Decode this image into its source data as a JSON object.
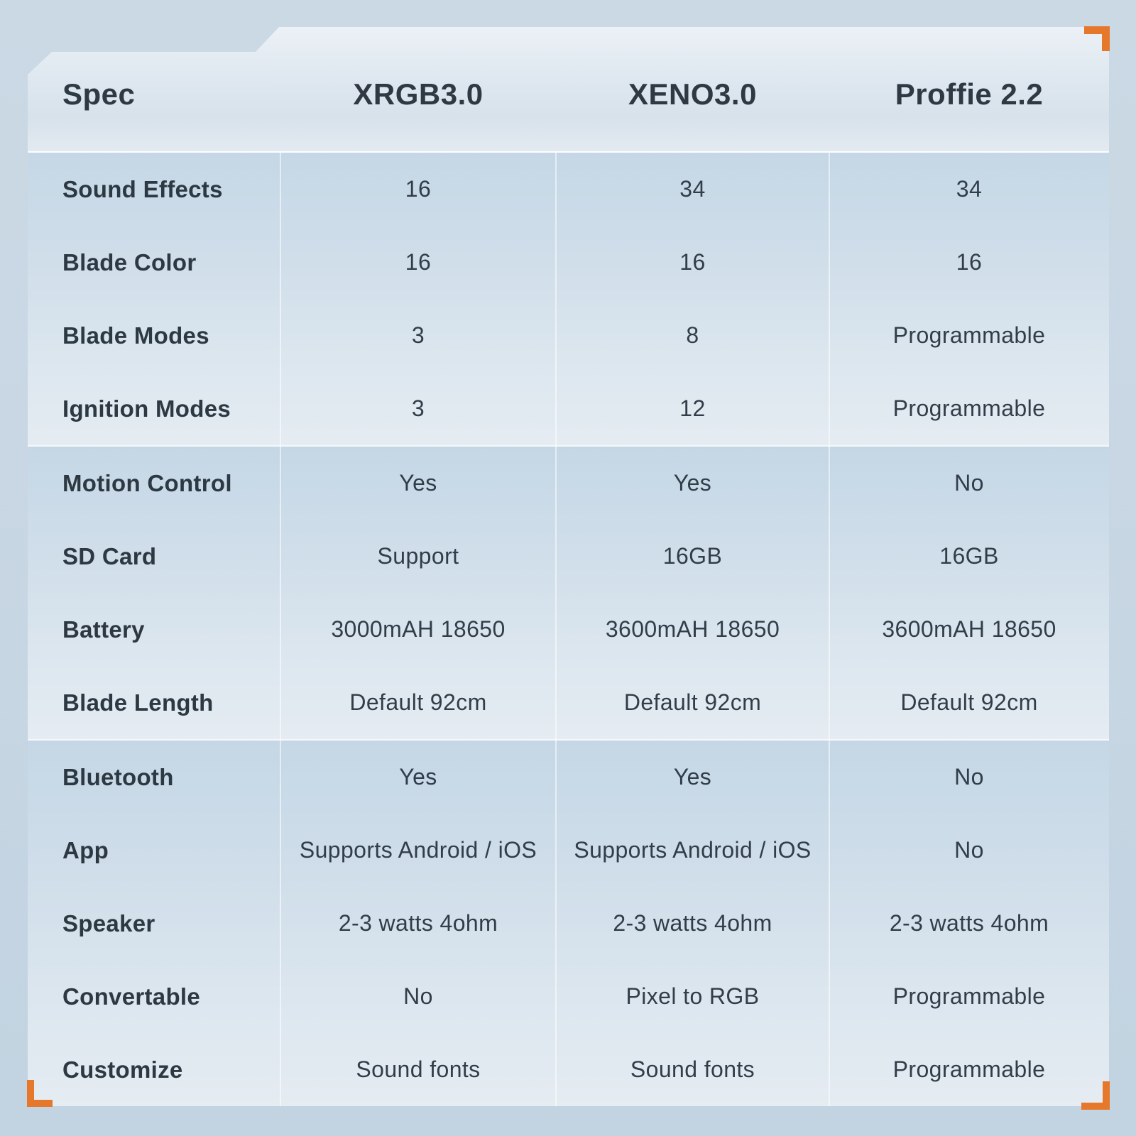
{
  "colors": {
    "accent_orange": "#E6782B",
    "page_background": "#C7D6E2",
    "band_dark": "#C5D7E6",
    "band_light": "#E5ECF2",
    "text_dark": "#2C3842"
  },
  "table": {
    "header": {
      "spec_label": "Spec",
      "products": [
        "XRGB3.0",
        "XENO3.0",
        "Proffie 2.2"
      ]
    },
    "groups": [
      {
        "rows": [
          {
            "label": "Sound Effects",
            "values": [
              "16",
              "34",
              "34"
            ]
          },
          {
            "label": "Blade Color",
            "values": [
              "16",
              "16",
              "16"
            ]
          },
          {
            "label": "Blade Modes",
            "values": [
              "3",
              "8",
              "Programmable"
            ]
          },
          {
            "label": "Ignition Modes",
            "values": [
              "3",
              "12",
              "Programmable"
            ]
          }
        ]
      },
      {
        "rows": [
          {
            "label": "Motion Control",
            "values": [
              "Yes",
              "Yes",
              "No"
            ]
          },
          {
            "label": "SD Card",
            "values": [
              "Support",
              "16GB",
              "16GB"
            ]
          },
          {
            "label": "Battery",
            "values": [
              "3000mAH 18650",
              "3600mAH 18650",
              "3600mAH 18650"
            ]
          },
          {
            "label": "Blade Length",
            "values": [
              "Default 92cm",
              "Default 92cm",
              "Default 92cm"
            ]
          }
        ]
      },
      {
        "rows": [
          {
            "label": "Bluetooth",
            "values": [
              "Yes",
              "Yes",
              "No"
            ]
          },
          {
            "label": "App",
            "values": [
              "Supports Android / iOS",
              "Supports Android / iOS",
              "No"
            ]
          },
          {
            "label": "Speaker",
            "values": [
              "2-3 watts 4ohm",
              "2-3 watts 4ohm",
              "2-3 watts 4ohm"
            ]
          },
          {
            "label": "Convertable",
            "values": [
              "No",
              "Pixel to RGB",
              "Programmable"
            ]
          },
          {
            "label": "Customize",
            "values": [
              "Sound fonts",
              "Sound fonts",
              "Programmable"
            ]
          }
        ]
      }
    ]
  }
}
